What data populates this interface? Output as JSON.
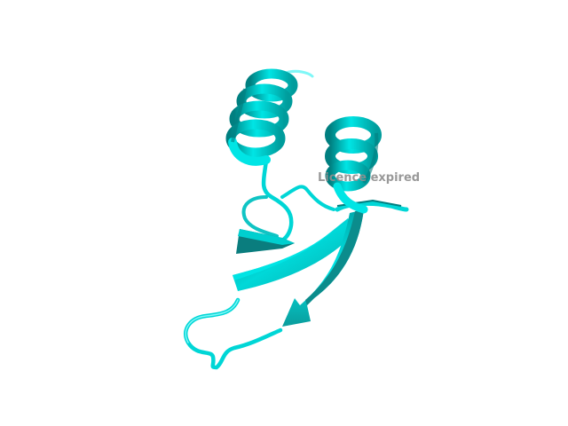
{
  "viewer": {
    "watermark_text": "Licence expired",
    "colors": {
      "background": "#ffffff",
      "cartoon": "#00e5e5",
      "cartoon_dark": "#007f80",
      "cartoon_mid": "#19b3b3",
      "cartoon_light": "#7ff7f7",
      "watermark": "#8f8f8f"
    },
    "structure": {
      "representation": "cartoon",
      "elements": [
        "alpha-helix",
        "alpha-helix",
        "beta-strand",
        "beta-strand",
        "loop"
      ]
    }
  }
}
